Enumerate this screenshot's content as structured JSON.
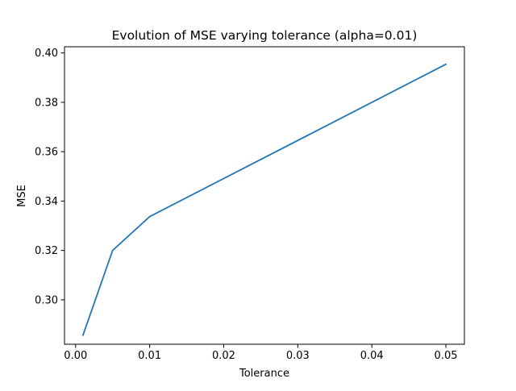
{
  "chart_data": {
    "type": "line",
    "title": "Evolution of MSE varying tolerance (alpha=0.01)",
    "xlabel": "Tolerance",
    "ylabel": "MSE",
    "xlim": [
      -0.0015,
      0.0525
    ],
    "ylim": [
      0.282,
      0.4025
    ],
    "xticks": [
      0.0,
      0.01,
      0.02,
      0.03,
      0.04,
      0.05
    ],
    "xtick_labels": [
      "0.00",
      "0.01",
      "0.02",
      "0.03",
      "0.04",
      "0.05"
    ],
    "yticks": [
      0.3,
      0.32,
      0.34,
      0.36,
      0.38,
      0.4
    ],
    "ytick_labels": [
      "0.30",
      "0.32",
      "0.34",
      "0.36",
      "0.38",
      "0.40"
    ],
    "grid": false,
    "series": [
      {
        "color": "#1f77b4",
        "x": [
          0.001,
          0.005,
          0.01,
          0.05
        ],
        "y": [
          0.2857,
          0.32,
          0.3337,
          0.3954
        ]
      }
    ]
  }
}
